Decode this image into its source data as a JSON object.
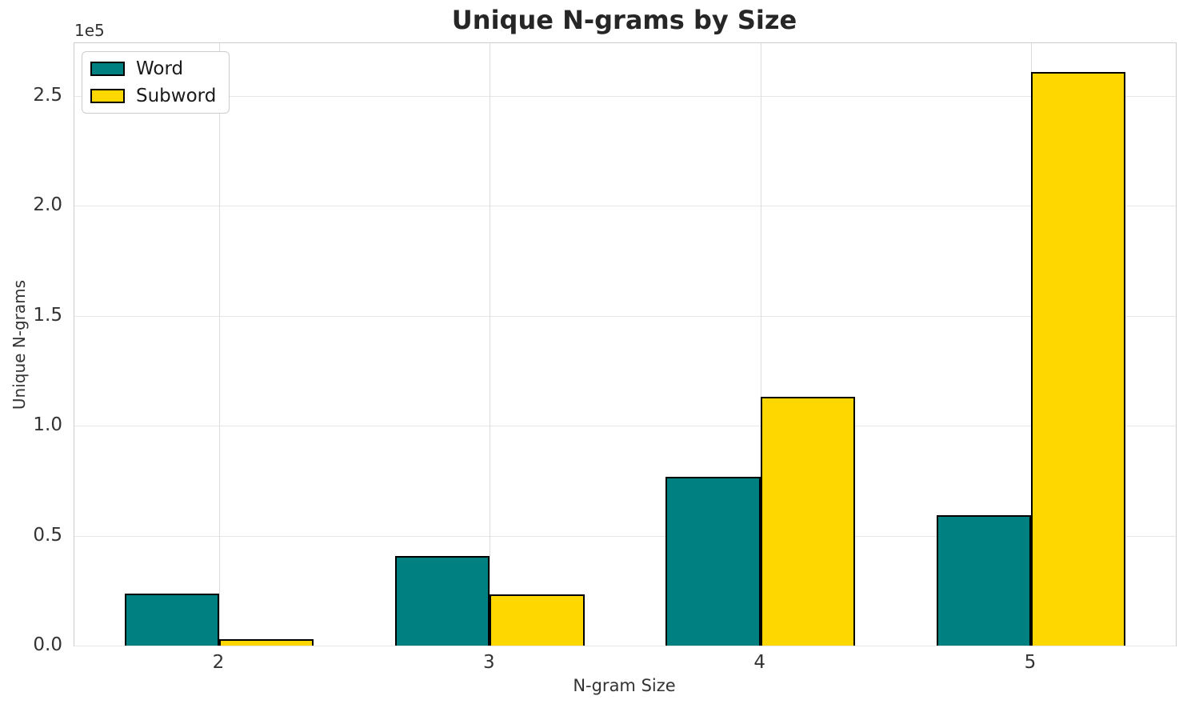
{
  "chart_data": {
    "type": "bar",
    "title": "Unique N-grams by Size",
    "xlabel": "N-gram Size",
    "ylabel": "Unique N-grams",
    "offset_text": "1e5",
    "categories": [
      2,
      3,
      4,
      5
    ],
    "series": [
      {
        "name": "Word",
        "color": "#008080",
        "values": [
          23700,
          40800,
          76800,
          59400
        ]
      },
      {
        "name": "Subword",
        "color": "#FFD700",
        "values": [
          2900,
          23300,
          113100,
          260900
        ]
      }
    ],
    "bar_width": 0.35,
    "edge_color": "#000000",
    "xlim": [
      1.465,
      5.535
    ],
    "ylim": [
      0,
      274000
    ],
    "yticks": [
      0,
      50000,
      100000,
      150000,
      200000,
      250000
    ],
    "ytick_labels": [
      "0.0",
      "0.5",
      "1.0",
      "1.5",
      "2.0",
      "2.5"
    ],
    "grid": true,
    "legend_position": "upper left"
  }
}
